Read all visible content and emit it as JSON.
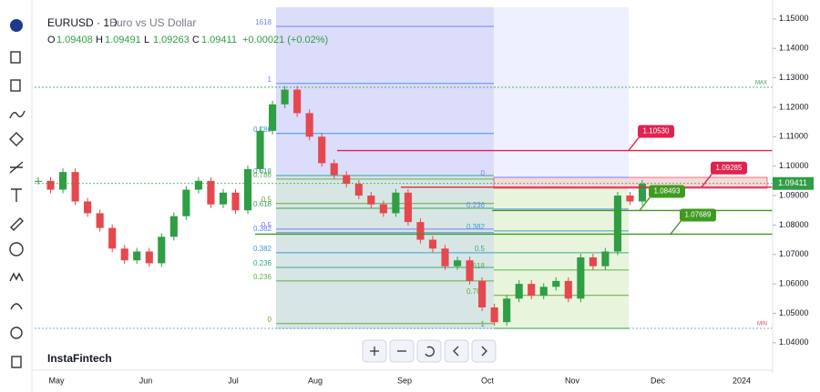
{
  "header": {
    "symbol": "EURUSD · 1D",
    "description": "Euro vs US Dollar",
    "ohlc": [
      {
        "key": "O",
        "value": "1.09408"
      },
      {
        "key": "H",
        "value": "1.09491"
      },
      {
        "key": "L",
        "value": "1.09263"
      },
      {
        "key": "C",
        "value": "1.09411"
      }
    ],
    "change": "+0.00021 (+0.02%)"
  },
  "brand": "InstaFintech",
  "chart_data": {
    "type": "candlestick",
    "closes": [
      1.095,
      1.092,
      1.098,
      1.088,
      1.084,
      1.079,
      1.072,
      1.068,
      1.071,
      1.067,
      1.076,
      1.083,
      1.092,
      1.095,
      1.087,
      1.091,
      1.085,
      1.099,
      1.112,
      1.121,
      1.126,
      1.118,
      1.11,
      1.101,
      1.097,
      1.094,
      1.09,
      1.087,
      1.084,
      1.091,
      1.081,
      1.075,
      1.072,
      1.066,
      1.068,
      1.061,
      1.052,
      1.047,
      1.055,
      1.06,
      1.056,
      1.059,
      1.061,
      1.055,
      1.069,
      1.066,
      1.071,
      1.09,
      1.088,
      1.094
    ],
    "colors": {
      "up": "#2f9e44",
      "down": "#e5484d"
    },
    "ylim": [
      1.0313,
      1.1549
    ],
    "yticks": [
      {
        "value": 1.04,
        "label": "1.04000"
      },
      {
        "value": 1.05,
        "label": "1.05000"
      },
      {
        "value": 1.06,
        "label": "1.06000"
      },
      {
        "value": 1.07,
        "label": "1.07000"
      },
      {
        "value": 1.08,
        "label": "1.08000"
      },
      {
        "value": 1.09,
        "label": "1.09000"
      },
      {
        "value": 1.1,
        "label": "1.10000"
      },
      {
        "value": 1.11,
        "label": "1.11000"
      },
      {
        "value": 1.12,
        "label": "1.12000"
      },
      {
        "value": 1.13,
        "label": "1.13000"
      },
      {
        "value": 1.14,
        "label": "1.14000"
      },
      {
        "value": 1.15,
        "label": "1.15000"
      }
    ],
    "x_labels": [
      "May",
      "Jun",
      "Jul",
      "Aug",
      "Sep",
      "Oct",
      "Nov",
      "Dec",
      "2024"
    ],
    "last_price": 1.09411,
    "max": {
      "label": "MAX",
      "value": 1.1268
    },
    "min": {
      "label": "MIN",
      "value": 1.0449
    },
    "price_levels": [
      {
        "value": 1.1053,
        "label": "1.10530",
        "color": "#e0234e"
      },
      {
        "value": 1.09285,
        "label": "1.09285",
        "color": "#e0234e"
      },
      {
        "value": 1.08493,
        "label": "1.08493",
        "color": "#3f9a1f"
      },
      {
        "value": 1.07689,
        "label": "1.07689",
        "color": "#3f9a1f"
      }
    ],
    "fib_left": [
      {
        "label": "1618",
        "value": 1.1475
      },
      {
        "label": "1",
        "value": 1.1281
      },
      {
        "label": "0.786",
        "value": 1.1111
      },
      {
        "label": "0.618",
        "value": 1.0968
      },
      {
        "label": "0.786",
        "value": 1.0956
      },
      {
        "label": "0.5",
        "value": 1.0873
      },
      {
        "label": "0.618",
        "value": 1.0857
      },
      {
        "label": "0.5",
        "value": 1.0786
      },
      {
        "label": "0.382",
        "value": 1.0774
      },
      {
        "label": "0.382",
        "value": 1.0706
      },
      {
        "label": "0.236",
        "value": 1.0656
      },
      {
        "label": "0.236",
        "value": 1.061
      },
      {
        "label": "0",
        "value": 1.0465
      }
    ],
    "fib_right": [
      {
        "label": "0",
        "value": 1.0962
      },
      {
        "label": "0.236",
        "value": 1.0854
      },
      {
        "label": "0.382",
        "value": 1.078
      },
      {
        "label": "0.5",
        "value": 1.0706
      },
      {
        "label": "0.618",
        "value": 1.0647
      },
      {
        "label": "0.786",
        "value": 1.0561
      },
      {
        "label": "1",
        "value": 1.0449
      }
    ]
  }
}
